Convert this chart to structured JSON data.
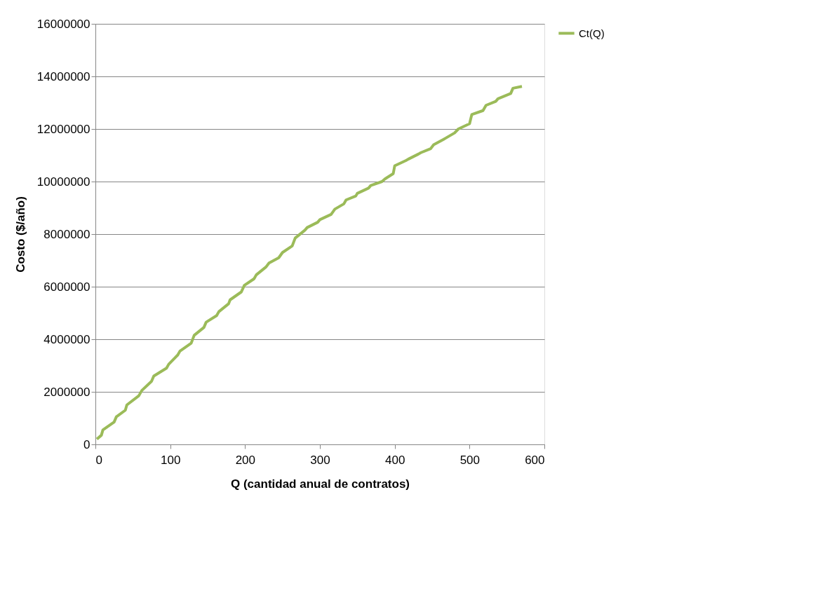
{
  "chart_data": {
    "type": "line",
    "xlabel": "Q (cantidad anual de contratos)",
    "ylabel": "Costo ($/año)",
    "xlim": [
      0,
      600
    ],
    "xticks": [
      0,
      100,
      200,
      300,
      400,
      500,
      600
    ],
    "ylim": [
      0,
      16000000
    ],
    "yticks": [
      0,
      2000000,
      4000000,
      6000000,
      8000000,
      10000000,
      12000000,
      14000000,
      16000000
    ],
    "grid": "y",
    "legend": "right",
    "marker": "none",
    "line_style": "solid",
    "series": [
      {
        "name": "Ct(Q)",
        "color": "#9bbb59",
        "x": [
          2,
          8,
          10,
          25,
          28,
          40,
          42,
          58,
          62,
          75,
          78,
          95,
          98,
          110,
          113,
          128,
          132,
          145,
          148,
          162,
          165,
          178,
          180,
          195,
          199,
          212,
          215,
          228,
          232,
          245,
          250,
          263,
          267,
          280,
          283,
          297,
          300,
          315,
          320,
          332,
          335,
          348,
          350,
          365,
          368,
          383,
          387,
          398,
          400,
          415,
          418,
          432,
          435,
          448,
          452,
          465,
          468,
          480,
          485,
          500,
          503,
          518,
          522,
          535,
          538,
          555,
          558,
          570
        ],
        "values": [
          200000,
          350000,
          550000,
          850000,
          1050000,
          1300000,
          1500000,
          1850000,
          2050000,
          2400000,
          2600000,
          2900000,
          3050000,
          3400000,
          3550000,
          3850000,
          4150000,
          4450000,
          4650000,
          4900000,
          5050000,
          5350000,
          5500000,
          5800000,
          6050000,
          6300000,
          6450000,
          6750000,
          6900000,
          7100000,
          7300000,
          7550000,
          7850000,
          8150000,
          8250000,
          8450000,
          8550000,
          8750000,
          8950000,
          9150000,
          9300000,
          9450000,
          9550000,
          9750000,
          9850000,
          10000000,
          10100000,
          10300000,
          10600000,
          10800000,
          10850000,
          11050000,
          11100000,
          11250000,
          11400000,
          11600000,
          11650000,
          11850000,
          12000000,
          12200000,
          12550000,
          12700000,
          12900000,
          13050000,
          13150000,
          13350000,
          13550000,
          13620000
        ]
      }
    ]
  }
}
